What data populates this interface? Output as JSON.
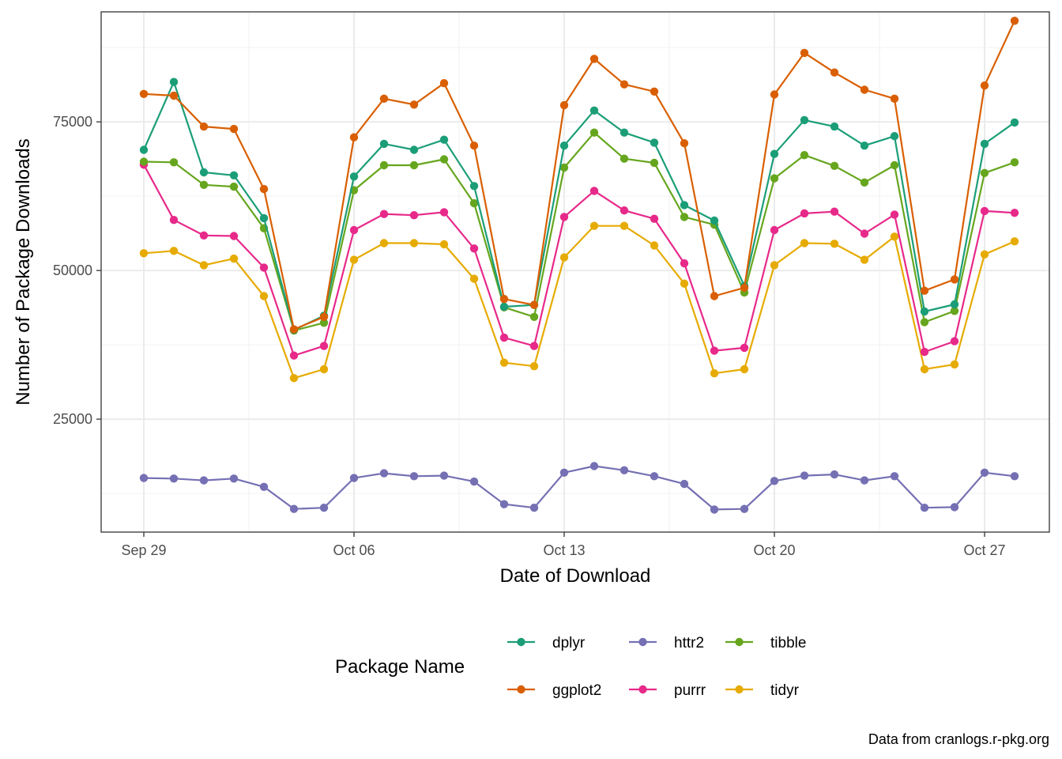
{
  "chart_data": {
    "type": "line",
    "xlabel": "Date of Download",
    "ylabel": "Number of Package Downloads",
    "x": [
      "2024-09-29",
      "2024-09-30",
      "2024-10-01",
      "2024-10-02",
      "2024-10-03",
      "2024-10-04",
      "2024-10-05",
      "2024-10-06",
      "2024-10-07",
      "2024-10-08",
      "2024-10-09",
      "2024-10-10",
      "2024-10-11",
      "2024-10-12",
      "2024-10-13",
      "2024-10-14",
      "2024-10-15",
      "2024-10-16",
      "2024-10-17",
      "2024-10-18",
      "2024-10-19",
      "2024-10-20",
      "2024-10-21",
      "2024-10-22",
      "2024-10-23",
      "2024-10-24",
      "2024-10-25",
      "2024-10-26",
      "2024-10-27",
      "2024-10-28"
    ],
    "x_ticks": [
      {
        "date": "2024-09-29",
        "label": "Sep 29"
      },
      {
        "date": "2024-10-06",
        "label": "Oct 06"
      },
      {
        "date": "2024-10-13",
        "label": "Oct 13"
      },
      {
        "date": "2024-10-20",
        "label": "Oct 20"
      },
      {
        "date": "2024-10-27",
        "label": "Oct 27"
      }
    ],
    "y_ticks": [
      25000,
      50000,
      75000
    ],
    "ylim": [
      6000,
      93500
    ],
    "xlim": [
      "2024-09-28",
      "2024-10-29"
    ],
    "grid": true,
    "legend_position": "bottom",
    "legend_title": "Package Name",
    "series": [
      {
        "name": "dplyr",
        "color": "#1b9e77",
        "values": [
          70300,
          81700,
          66500,
          66000,
          58800,
          40000,
          42400,
          65800,
          71300,
          70300,
          72000,
          64200,
          43900,
          44200,
          71000,
          76900,
          73200,
          71500,
          61000,
          58400,
          47400,
          69600,
          75300,
          74200,
          71000,
          72600,
          43100,
          44300,
          71300,
          74900
        ]
      },
      {
        "name": "ggplot2",
        "color": "#d95f02",
        "values": [
          79700,
          79400,
          74200,
          73800,
          63700,
          40100,
          42200,
          72400,
          78900,
          77900,
          81500,
          71000,
          45200,
          44200,
          77800,
          85600,
          81300,
          80100,
          71400,
          45700,
          47100,
          79600,
          86600,
          83300,
          80400,
          78900,
          46600,
          48500,
          81100,
          92000
        ]
      },
      {
        "name": "httr2",
        "color": "#7570b3",
        "values": [
          15100,
          15000,
          14700,
          15000,
          13600,
          9900,
          10100,
          15100,
          15900,
          15400,
          15500,
          14500,
          10700,
          10100,
          16000,
          17100,
          16400,
          15400,
          14100,
          9800,
          9900,
          14600,
          15500,
          15700,
          14700,
          15400,
          10100,
          10200,
          16000,
          15400
        ]
      },
      {
        "name": "purrr",
        "color": "#e7298a",
        "values": [
          67800,
          58500,
          55900,
          55800,
          50500,
          35700,
          37300,
          56800,
          59500,
          59300,
          59800,
          53700,
          38700,
          37300,
          59000,
          63400,
          60100,
          58700,
          51200,
          36500,
          37000,
          56800,
          59600,
          59900,
          56200,
          59400,
          36300,
          38100,
          60000,
          59700
        ]
      },
      {
        "name": "tibble",
        "color": "#66a61e",
        "values": [
          68300,
          68200,
          64400,
          64100,
          57100,
          39900,
          41200,
          63500,
          67700,
          67700,
          68700,
          61300,
          43800,
          42200,
          67300,
          73200,
          68800,
          68100,
          59000,
          57700,
          46300,
          65500,
          69400,
          67600,
          64800,
          67700,
          41300,
          43200,
          66400,
          68200
        ]
      },
      {
        "name": "tidyr",
        "color": "#e6ab02",
        "values": [
          52900,
          53300,
          50900,
          52000,
          45700,
          31900,
          33400,
          51800,
          54600,
          54600,
          54400,
          48600,
          34500,
          33900,
          52200,
          57500,
          57500,
          54200,
          47800,
          32700,
          33400,
          50900,
          54600,
          54500,
          51800,
          55700,
          33400,
          34200,
          52700,
          54900
        ]
      }
    ]
  },
  "legend": {
    "title": "Package Name",
    "items": [
      "dplyr",
      "httr2",
      "tibble",
      "ggplot2",
      "purrr",
      "tidyr"
    ]
  },
  "caption": "Data from cranlogs.r-pkg.org"
}
